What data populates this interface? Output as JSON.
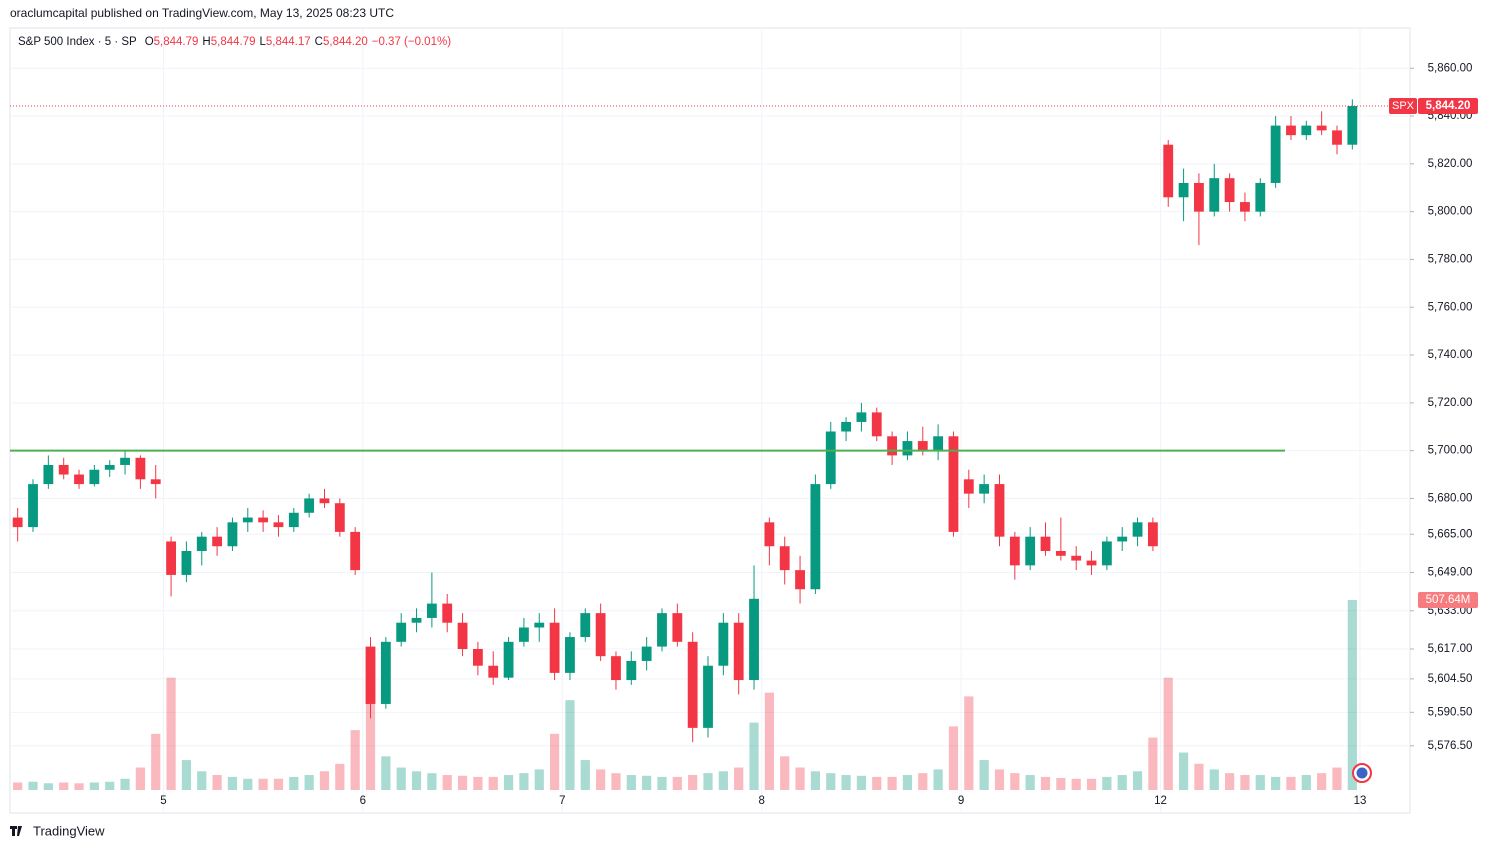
{
  "published": "oraclumcapital published on TradingView.com, May 13, 2025 08:23 UTC",
  "brand": "TradingView",
  "chart_data": {
    "type": "candlestick",
    "header": {
      "title": "S&P 500 Index · 5 · SP",
      "ohlc": [
        {
          "key": "O",
          "value": "5,844.79"
        },
        {
          "key": "H",
          "value": "5,844.79"
        },
        {
          "key": "L",
          "value": "5,844.17"
        },
        {
          "key": "C",
          "value": "5,844.20"
        }
      ],
      "change": "−0.37 (−0.01%)"
    },
    "symbol": "SPX",
    "last_label": "5,844.20",
    "up_color": "#089981",
    "down_color": "#f23645",
    "open": [
      5672,
      5668,
      5686,
      5694,
      5690,
      5686,
      5692,
      5694,
      5697,
      5688,
      5662,
      5648,
      5658,
      5664,
      5660,
      5670,
      5672,
      5670,
      5668,
      5674,
      5680,
      5678,
      5666,
      5618,
      5594,
      5620,
      5628,
      5630,
      5636,
      5628,
      5617,
      5610,
      5605,
      5620,
      5626,
      5628,
      5607,
      5622,
      5632,
      5614,
      5604,
      5612,
      5618,
      5632,
      5620,
      5584,
      5610,
      5628,
      5604,
      5670,
      5660,
      5650,
      5642,
      5686,
      5708,
      5712,
      5716,
      5706,
      5698,
      5704,
      5700,
      5706,
      5688,
      5682,
      5686,
      5664,
      5652,
      5664,
      5658,
      5656,
      5654,
      5652,
      5662,
      5664,
      5670,
      5828,
      5806,
      5812,
      5800,
      5814,
      5804,
      5800,
      5812,
      5836,
      5832,
      5836,
      5834,
      5828
    ],
    "high": [
      5676,
      5688,
      5698,
      5697,
      5692,
      5694,
      5696,
      5700,
      5698,
      5694,
      5664,
      5662,
      5666,
      5668,
      5672,
      5676,
      5675,
      5673,
      5676,
      5682,
      5684,
      5680,
      5668,
      5622,
      5622,
      5632,
      5634,
      5649,
      5640,
      5632,
      5620,
      5616,
      5622,
      5630,
      5632,
      5634,
      5624,
      5634,
      5636,
      5616,
      5616,
      5622,
      5634,
      5636,
      5624,
      5614,
      5632,
      5632,
      5652,
      5672,
      5664,
      5656,
      5690,
      5712,
      5714,
      5720,
      5718,
      5708,
      5708,
      5710,
      5711,
      5708,
      5692,
      5690,
      5690,
      5666,
      5668,
      5670,
      5672,
      5660,
      5658,
      5664,
      5668,
      5672,
      5672,
      5830,
      5818,
      5816,
      5820,
      5816,
      5808,
      5814,
      5840,
      5840,
      5838,
      5842,
      5836,
      5847
    ],
    "low": [
      5662,
      5666,
      5684,
      5688,
      5684,
      5685,
      5689,
      5690,
      5684,
      5680,
      5639,
      5645,
      5652,
      5656,
      5658,
      5666,
      5666,
      5664,
      5666,
      5672,
      5676,
      5664,
      5648,
      5588,
      5592,
      5618,
      5624,
      5626,
      5624,
      5614,
      5606,
      5602,
      5604,
      5618,
      5620,
      5604,
      5604,
      5620,
      5612,
      5600,
      5602,
      5608,
      5616,
      5618,
      5578,
      5580,
      5606,
      5598,
      5600,
      5652,
      5644,
      5636,
      5640,
      5684,
      5704,
      5708,
      5704,
      5694,
      5696,
      5698,
      5696,
      5664,
      5676,
      5678,
      5660,
      5646,
      5650,
      5656,
      5654,
      5650,
      5648,
      5650,
      5658,
      5660,
      5658,
      5802,
      5796,
      5786,
      5798,
      5800,
      5796,
      5798,
      5810,
      5830,
      5830,
      5832,
      5824,
      5826
    ],
    "close": [
      5668,
      5686,
      5694,
      5690,
      5686,
      5692,
      5694,
      5697,
      5688,
      5686,
      5648,
      5658,
      5664,
      5660,
      5670,
      5672,
      5670,
      5668,
      5674,
      5680,
      5678,
      5666,
      5650,
      5594,
      5620,
      5628,
      5630,
      5636,
      5628,
      5617,
      5610,
      5605,
      5620,
      5626,
      5628,
      5607,
      5622,
      5632,
      5614,
      5604,
      5612,
      5618,
      5632,
      5620,
      5584,
      5610,
      5628,
      5604,
      5638,
      5660,
      5650,
      5642,
      5686,
      5708,
      5712,
      5716,
      5706,
      5698,
      5704,
      5700,
      5706,
      5666,
      5682,
      5686,
      5664,
      5652,
      5664,
      5658,
      5656,
      5654,
      5652,
      5662,
      5664,
      5670,
      5660,
      5806,
      5812,
      5800,
      5814,
      5804,
      5800,
      5812,
      5836,
      5832,
      5836,
      5834,
      5828,
      5844.2
    ],
    "volume": {
      "name": "Volume",
      "axis": "y2",
      "last_label": "507.64M",
      "values": [
        20,
        22,
        18,
        20,
        18,
        20,
        22,
        30,
        60,
        150,
        300,
        80,
        50,
        40,
        35,
        30,
        30,
        30,
        35,
        40,
        50,
        70,
        160,
        280,
        90,
        60,
        50,
        45,
        40,
        38,
        35,
        35,
        40,
        45,
        55,
        150,
        240,
        80,
        55,
        45,
        40,
        38,
        35,
        35,
        40,
        45,
        50,
        60,
        180,
        260,
        90,
        60,
        50,
        45,
        40,
        38,
        35,
        35,
        40,
        45,
        55,
        170,
        250,
        80,
        55,
        45,
        40,
        35,
        32,
        30,
        30,
        35,
        40,
        50,
        140,
        300,
        100,
        70,
        55,
        45,
        40,
        40,
        35,
        35,
        40,
        45,
        60,
        507.64
      ]
    },
    "xticks": [
      {
        "value": 10,
        "label": "5"
      },
      {
        "value": 23,
        "label": "6"
      },
      {
        "value": 36,
        "label": "7"
      },
      {
        "value": 49,
        "label": "8"
      },
      {
        "value": 62,
        "label": "9"
      },
      {
        "value": 75,
        "label": "12"
      },
      {
        "value": 88,
        "label": "13"
      }
    ],
    "ylim": [
      5558,
      5876
    ],
    "yticks": [
      {
        "value": 5860,
        "label": "5,860.00"
      },
      {
        "value": 5840,
        "label": "5,840.00"
      },
      {
        "value": 5820,
        "label": "5,820.00"
      },
      {
        "value": 5800,
        "label": "5,800.00"
      },
      {
        "value": 5780,
        "label": "5,780.00"
      },
      {
        "value": 5760,
        "label": "5,760.00"
      },
      {
        "value": 5740,
        "label": "5,740.00"
      },
      {
        "value": 5720,
        "label": "5,720.00"
      },
      {
        "value": 5700,
        "label": "5,700.00"
      },
      {
        "value": 5680,
        "label": "5,680.00"
      },
      {
        "value": 5665,
        "label": "5,665.00"
      },
      {
        "value": 5649,
        "label": "5,649.00"
      },
      {
        "value": 5633,
        "label": "5,633.00"
      },
      {
        "value": 5617,
        "label": "5,617.00"
      },
      {
        "value": 5604.5,
        "label": "5,604.50"
      },
      {
        "value": 5590.5,
        "label": "5,590.50"
      },
      {
        "value": 5576.5,
        "label": "5,576.50"
      }
    ],
    "y2lim": [
      0,
      2030
    ],
    "hline": {
      "value": 5700,
      "color": "#4caf50"
    },
    "grid": true
  }
}
